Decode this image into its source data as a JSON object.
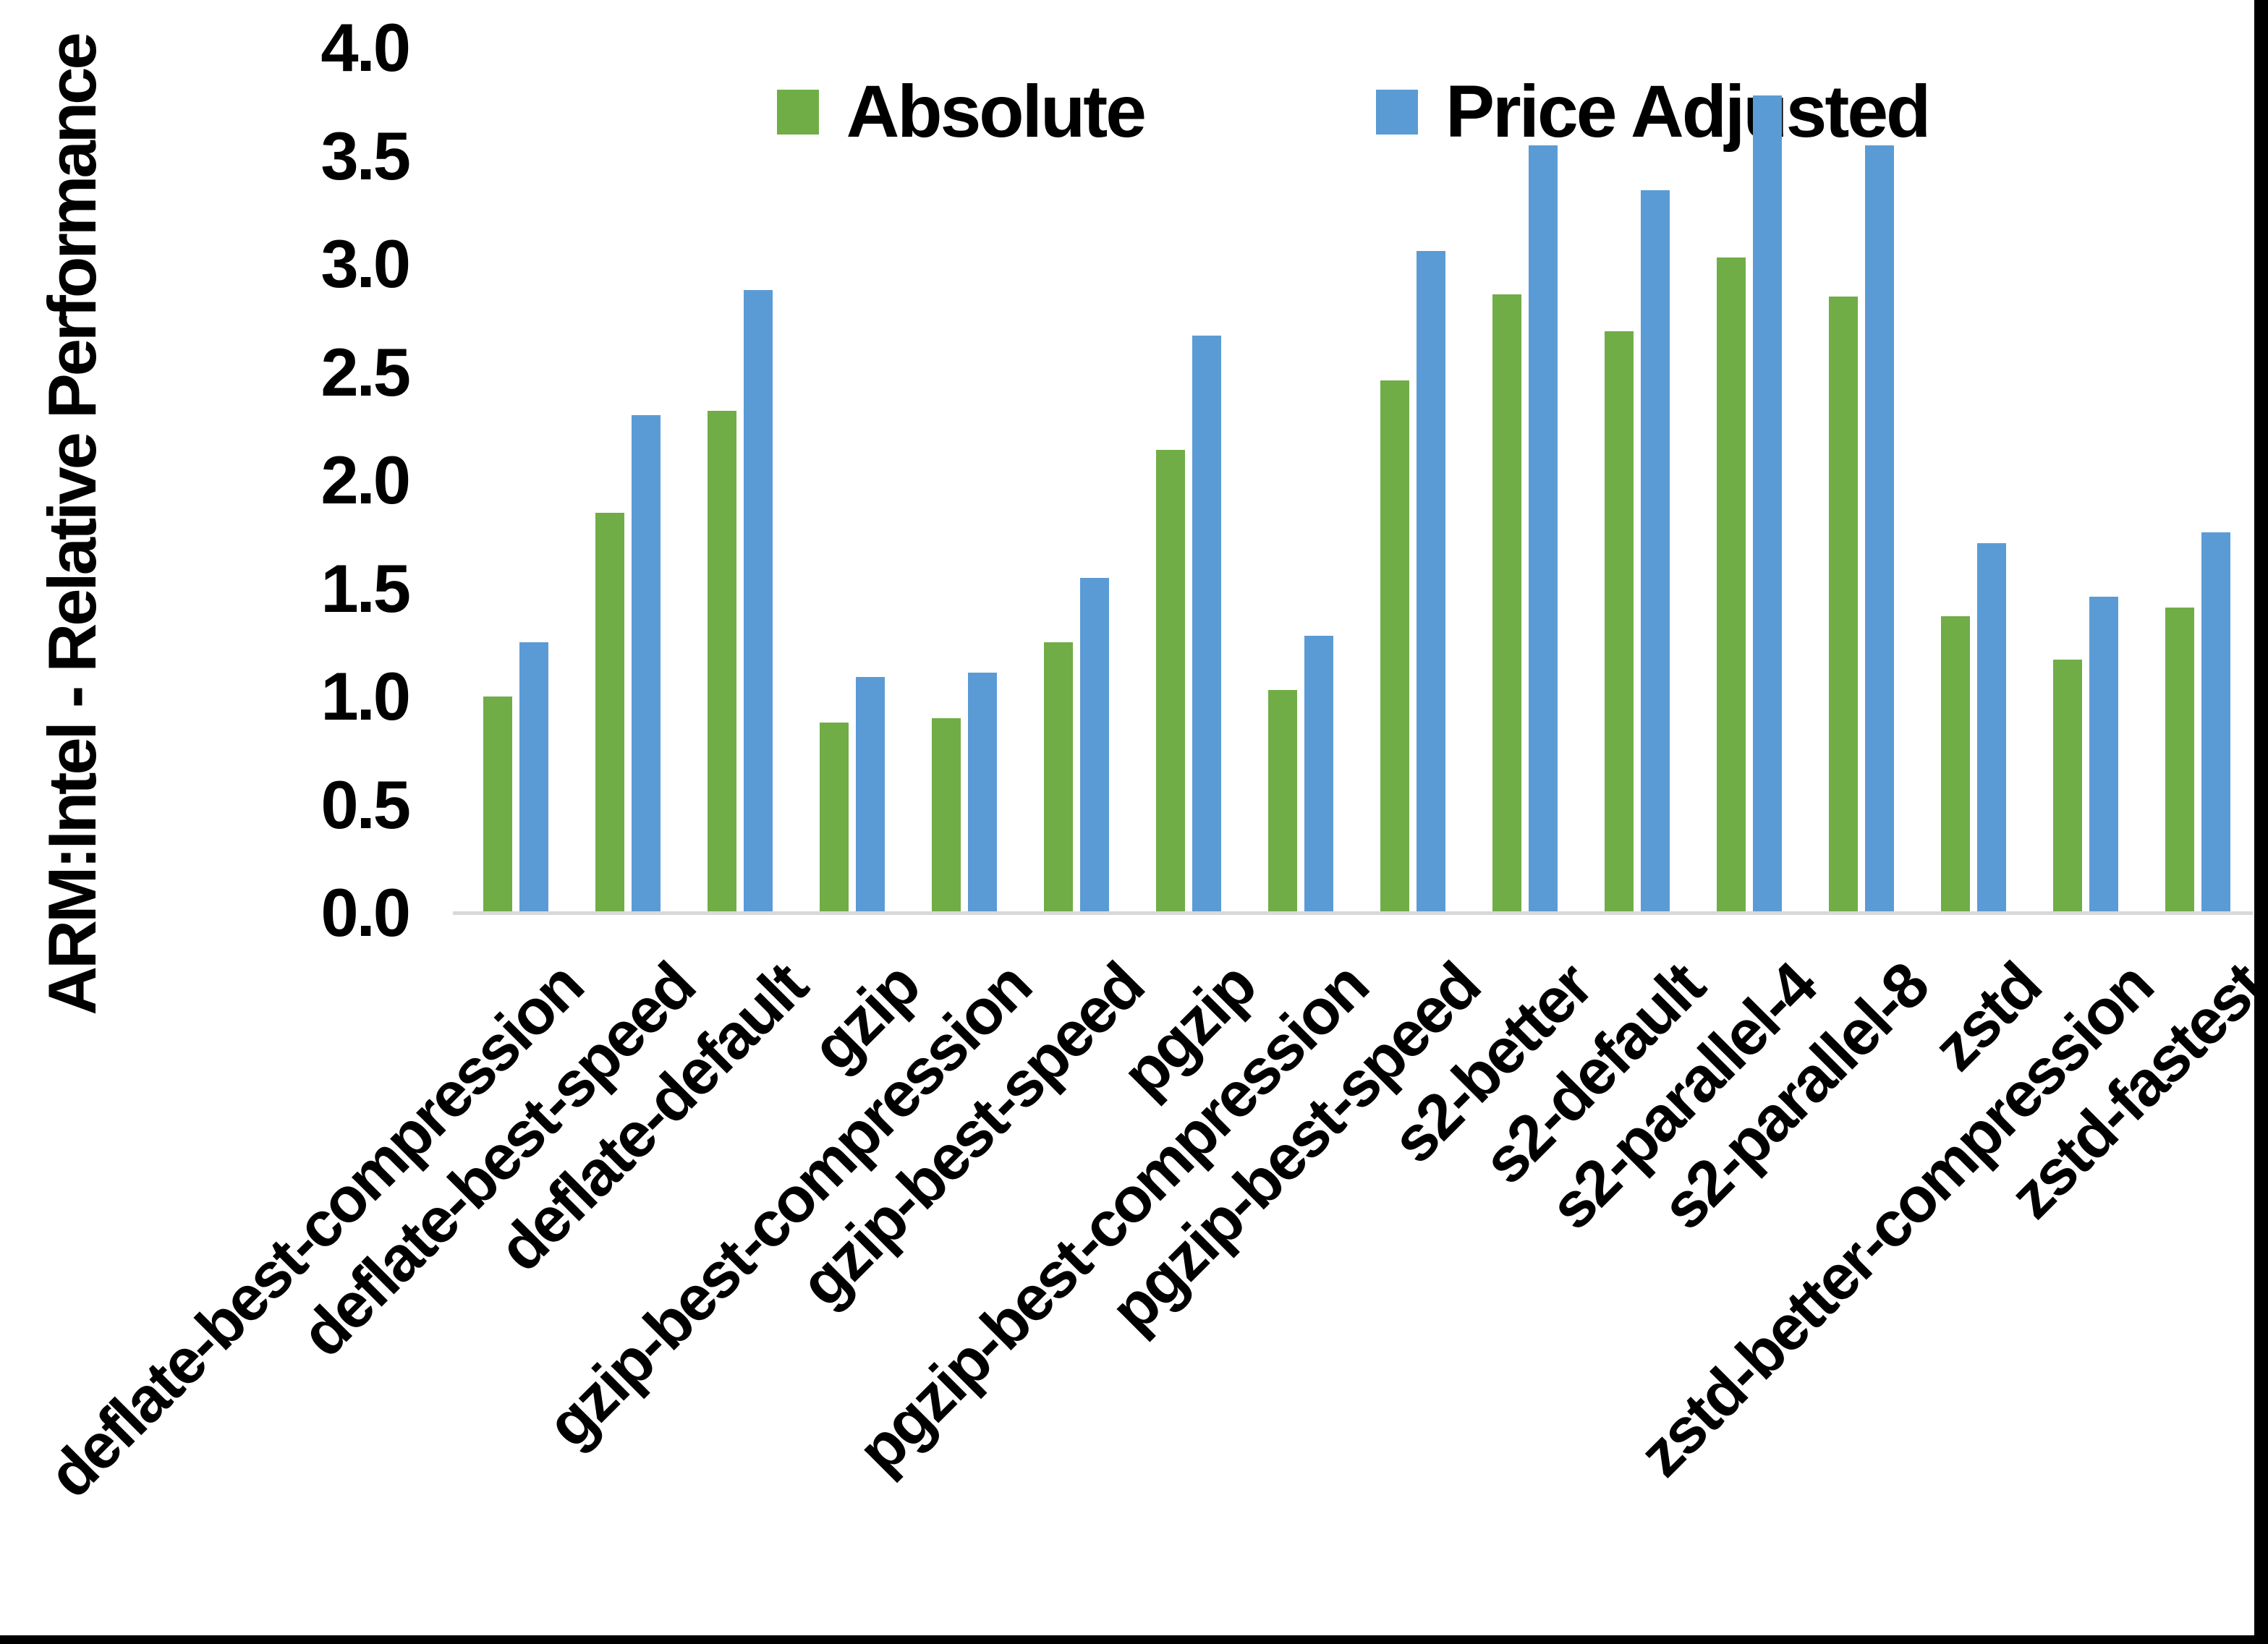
{
  "chart_data": {
    "type": "bar",
    "title": "",
    "xlabel": "",
    "ylabel": "ARM:Intel - Relative Performance",
    "ylim": [
      0.0,
      4.0
    ],
    "ytick_step": 0.5,
    "yticks": [
      "4.0",
      "3.5",
      "3.0",
      "2.5",
      "2.0",
      "1.5",
      "1.0",
      "0.5",
      "0.0"
    ],
    "grid": false,
    "legend_position": "top-center",
    "categories": [
      "deflate-best-compression",
      "deflate-best-speed",
      "deflate-default",
      "gzip",
      "gzip-best-compression",
      "gzip-best-speed",
      "pgzip",
      "pgzip-best-compression",
      "pgzip-best-speed",
      "s2-better",
      "s2-default",
      "s2-parallel-4",
      "s2-parallel-8",
      "zstd",
      "zstd-better-compression",
      "zstd-fastest"
    ],
    "series": [
      {
        "name": "Absolute",
        "color": "#70AD47",
        "values": [
          1.0,
          1.85,
          2.32,
          0.88,
          0.9,
          1.25,
          2.14,
          1.03,
          2.46,
          2.86,
          2.69,
          3.03,
          2.85,
          1.37,
          1.17,
          1.41
        ]
      },
      {
        "name": "Price Adjusted",
        "color": "#5B9BD5",
        "values": [
          1.25,
          2.3,
          2.88,
          1.09,
          1.11,
          1.55,
          2.67,
          1.28,
          3.06,
          3.55,
          3.34,
          3.78,
          3.55,
          1.71,
          1.46,
          1.76
        ]
      }
    ]
  },
  "colors": {
    "background": "#FFFFFF",
    "axis_line": "#D9D9D9",
    "text": "#000000",
    "frame": "#000000"
  }
}
